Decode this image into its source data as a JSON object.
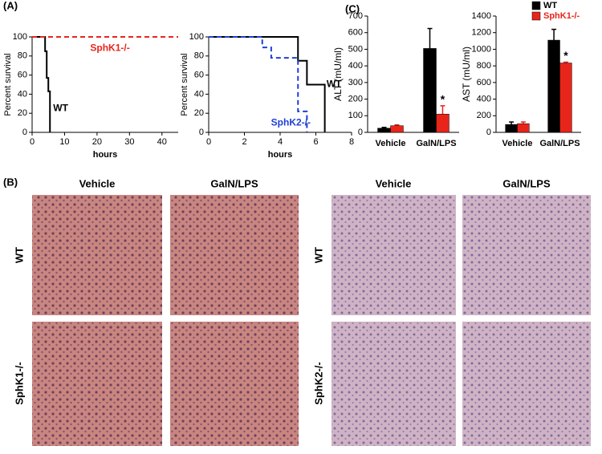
{
  "panel_labels": [
    "(A)",
    "(B)",
    "(C)"
  ],
  "chart_data": [
    {
      "type": "step",
      "ylabel": "Percent survival",
      "xlabel": "hours",
      "xlim": [
        0,
        45
      ],
      "xticks": [
        0,
        10,
        20,
        30,
        40
      ],
      "ylim": [
        0,
        100
      ],
      "yticks": [
        0,
        20,
        40,
        60,
        80,
        100
      ],
      "series": [
        {
          "name": "WT",
          "color": "#000000",
          "dash": false,
          "x": [
            0,
            4,
            4.5,
            5,
            5.5
          ],
          "values": [
            100,
            85,
            57,
            43,
            0
          ]
        },
        {
          "name": "SphK1-/-",
          "color": "#e8251b",
          "dash": true,
          "x": [
            0,
            45
          ],
          "values": [
            100,
            100
          ]
        }
      ]
    },
    {
      "type": "step",
      "ylabel": "Percent survival",
      "xlabel": "hours",
      "xlim": [
        0,
        8
      ],
      "xticks": [
        0,
        2,
        4,
        6,
        8
      ],
      "ylim": [
        0,
        100
      ],
      "yticks": [
        0,
        20,
        40,
        60,
        80,
        100
      ],
      "series": [
        {
          "name": "WT",
          "color": "#000000",
          "dash": false,
          "x": [
            0,
            5,
            5.5,
            6.5
          ],
          "values": [
            100,
            75,
            50,
            0
          ]
        },
        {
          "name": "SphK2-/-",
          "color": "#1f3fd6",
          "dash": true,
          "x": [
            0,
            3,
            3.5,
            5,
            5.5
          ],
          "values": [
            100,
            89,
            78,
            22,
            0
          ]
        }
      ]
    },
    {
      "type": "bar",
      "ylabel": "ALT (mU/ml)",
      "categories": [
        "Vehicle",
        "GalN/LPS"
      ],
      "ylim": [
        0,
        700
      ],
      "yticks": [
        0,
        100,
        200,
        300,
        400,
        500,
        600,
        700
      ],
      "legend": false,
      "annotations": [
        "*"
      ],
      "series": [
        {
          "name": "WT",
          "color": "#000000",
          "values": [
            25,
            505
          ],
          "errors": [
            5,
            120
          ]
        },
        {
          "name": "SphK1-/-",
          "color": "#e8251b",
          "values": [
            40,
            110
          ],
          "errors": [
            5,
            50
          ]
        }
      ]
    },
    {
      "type": "bar",
      "ylabel": "AST (mU/ml)",
      "categories": [
        "Vehicle",
        "GalN/LPS"
      ],
      "ylim": [
        0,
        1400
      ],
      "yticks": [
        0,
        200,
        400,
        600,
        800,
        1000,
        1200,
        1400
      ],
      "legend": true,
      "annotations": [
        "*"
      ],
      "series": [
        {
          "name": "WT",
          "color": "#000000",
          "values": [
            95,
            1110
          ],
          "errors": [
            30,
            130
          ]
        },
        {
          "name": "SphK1-/-",
          "color": "#e8251b",
          "values": [
            105,
            835
          ],
          "errors": [
            20,
            10
          ]
        }
      ]
    }
  ],
  "histology": {
    "columns_left": [
      "Vehicle",
      "GalN/LPS"
    ],
    "columns_right": [
      "Vehicle",
      "GalN/LPS"
    ],
    "rows_left": [
      "WT",
      "SphK1-/-"
    ],
    "rows_right": [
      "WT",
      "SphK2-/-"
    ]
  }
}
